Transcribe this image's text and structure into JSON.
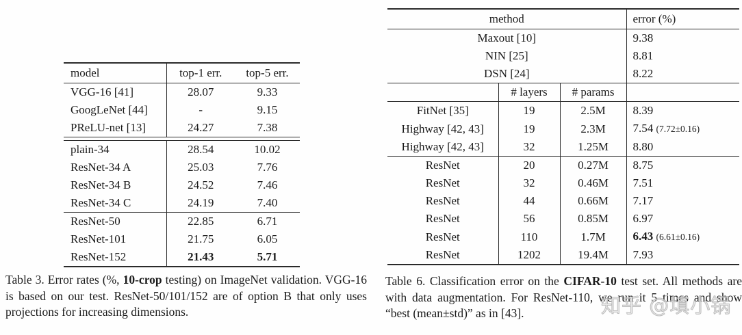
{
  "table3": {
    "headers": {
      "model": "model",
      "top1": "top-1 err.",
      "top5": "top-5 err."
    },
    "groups": [
      {
        "rows": [
          {
            "model": "VGG-16 [41]",
            "top1": "28.07",
            "top5": "9.33",
            "bold": false
          },
          {
            "model": "GoogLeNet [44]",
            "top1": "-",
            "top5": "9.15",
            "bold": false
          },
          {
            "model": "PReLU-net [13]",
            "top1": "24.27",
            "top5": "7.38",
            "bold": false
          }
        ]
      },
      {
        "rows": [
          {
            "model": "plain-34",
            "top1": "28.54",
            "top5": "10.02",
            "bold": false
          },
          {
            "model": "ResNet-34 A",
            "top1": "25.03",
            "top5": "7.76",
            "bold": false
          },
          {
            "model": "ResNet-34 B",
            "top1": "24.52",
            "top5": "7.46",
            "bold": false
          },
          {
            "model": "ResNet-34 C",
            "top1": "24.19",
            "top5": "7.40",
            "bold": false
          }
        ]
      },
      {
        "rows": [
          {
            "model": "ResNet-50",
            "top1": "22.85",
            "top5": "6.71",
            "bold": false
          },
          {
            "model": "ResNet-101",
            "top1": "21.75",
            "top5": "6.05",
            "bold": false
          },
          {
            "model": "ResNet-152",
            "top1": "21.43",
            "top5": "5.71",
            "bold": true
          }
        ]
      }
    ],
    "caption": {
      "prefix": "Table 3. Error rates (%, ",
      "bold": "10-crop",
      "suffix": " testing) on ImageNet validation. VGG-16 is based on our test. ResNet-50/101/152 are of option B that only uses projections for increasing dimensions."
    }
  },
  "table6": {
    "headers": {
      "method": "method",
      "error": "error (%)",
      "layers": "# layers",
      "params": "# params"
    },
    "top_group": [
      {
        "method": "Maxout [10]",
        "error": "9.38"
      },
      {
        "method": "NIN [25]",
        "error": "8.81"
      },
      {
        "method": "DSN [24]",
        "error": "8.22"
      }
    ],
    "mid_group": [
      {
        "method": "FitNet [35]",
        "layers": "19",
        "params": "2.5M",
        "error": "8.39",
        "note": "",
        "bold": false
      },
      {
        "method": "Highway [42, 43]",
        "layers": "19",
        "params": "2.3M",
        "error": "7.54",
        "note": "(7.72±0.16)",
        "bold": false
      },
      {
        "method": "Highway [42, 43]",
        "layers": "32",
        "params": "1.25M",
        "error": "8.80",
        "note": "",
        "bold": false
      }
    ],
    "resnet_group": [
      {
        "method": "ResNet",
        "layers": "20",
        "params": "0.27M",
        "error": "8.75",
        "note": "",
        "bold": false
      },
      {
        "method": "ResNet",
        "layers": "32",
        "params": "0.46M",
        "error": "7.51",
        "note": "",
        "bold": false
      },
      {
        "method": "ResNet",
        "layers": "44",
        "params": "0.66M",
        "error": "7.17",
        "note": "",
        "bold": false
      },
      {
        "method": "ResNet",
        "layers": "56",
        "params": "0.85M",
        "error": "6.97",
        "note": "",
        "bold": false
      },
      {
        "method": "ResNet",
        "layers": "110",
        "params": "1.7M",
        "error": "6.43",
        "note": "(6.61±0.16)",
        "bold": true
      },
      {
        "method": "ResNet",
        "layers": "1202",
        "params": "19.4M",
        "error": "7.93",
        "note": "",
        "bold": false
      }
    ],
    "caption": {
      "prefix": "Table 6. Classification error on the ",
      "bold": "CIFAR-10",
      "suffix": " test set. All methods are with data augmentation. For ResNet-110, we run it 5 times and show “best (mean±std)” as in [43]."
    }
  },
  "watermark": "知乎 @填小锅"
}
